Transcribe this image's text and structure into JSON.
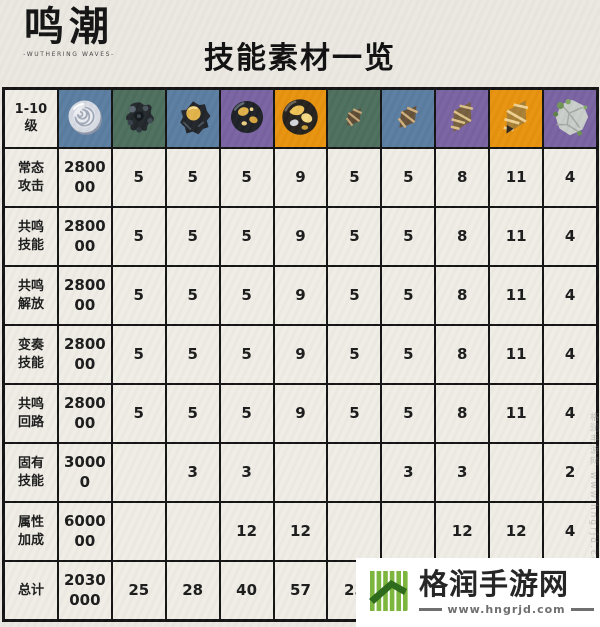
{
  "logo": {
    "title": "鸣潮",
    "subtitle": "-WUTHERING WAVES-"
  },
  "header": {
    "title": "技能素材一览"
  },
  "colors": {
    "tile_blue": "#5b7da1",
    "tile_green": "#4e6f5e",
    "tile_purple": "#7a63a2",
    "tile_orange": "#e8930f",
    "table_border": "#141414",
    "cell_bg": "#f0ede6",
    "page_bg": "#ebe8e1",
    "watermark_green": "#7cb63e",
    "watermark_dark_green": "#2f6b1d"
  },
  "chart_data": {
    "type": "table",
    "title": "技能素材一览",
    "header": {
      "level_label_top": "1-10",
      "level_label_bottom": "级",
      "columns": [
        {
          "icon": "shell-credit-icon",
          "bg": "#5b7da1"
        },
        {
          "icon": "howler-core-t1-icon",
          "bg": "#4e6f5e"
        },
        {
          "icon": "howler-core-t2-icon",
          "bg": "#5b7da1"
        },
        {
          "icon": "howler-core-t3-icon",
          "bg": "#7a63a2"
        },
        {
          "icon": "howler-core-t4-icon",
          "bg": "#e8930f"
        },
        {
          "icon": "forgery-material-t1-icon",
          "bg": "#4e6f5e"
        },
        {
          "icon": "forgery-material-t2-icon",
          "bg": "#5b7da1"
        },
        {
          "icon": "forgery-material-t3-icon",
          "bg": "#7a63a2"
        },
        {
          "icon": "forgery-material-t4-icon",
          "bg": "#e8930f"
        },
        {
          "icon": "boss-material-icon",
          "bg": "#7a63a2"
        }
      ]
    },
    "rows": [
      {
        "label": "常态攻击",
        "values": [
          "280000",
          "5",
          "5",
          "5",
          "9",
          "5",
          "5",
          "8",
          "11",
          "4"
        ]
      },
      {
        "label": "共鸣技能",
        "values": [
          "280000",
          "5",
          "5",
          "5",
          "9",
          "5",
          "5",
          "8",
          "11",
          "4"
        ]
      },
      {
        "label": "共鸣解放",
        "values": [
          "280000",
          "5",
          "5",
          "5",
          "9",
          "5",
          "5",
          "8",
          "11",
          "4"
        ]
      },
      {
        "label": "变奏技能",
        "values": [
          "280000",
          "5",
          "5",
          "5",
          "9",
          "5",
          "5",
          "8",
          "11",
          "4"
        ]
      },
      {
        "label": "共鸣回路",
        "values": [
          "280000",
          "5",
          "5",
          "5",
          "9",
          "5",
          "5",
          "8",
          "11",
          "4"
        ]
      },
      {
        "label": "固有技能",
        "values": [
          "30000",
          "",
          "3",
          "3",
          "",
          "",
          "3",
          "3",
          "",
          "2"
        ]
      },
      {
        "label": "属性加成",
        "values": [
          "600000",
          "",
          "",
          "12",
          "12",
          "",
          "",
          "12",
          "12",
          "4"
        ]
      },
      {
        "label": "总计",
        "values": [
          "2030000",
          "25",
          "28",
          "40",
          "57",
          "25",
          "",
          "",
          "",
          ""
        ]
      }
    ]
  },
  "watermark": {
    "site_name": "格润手游网",
    "site_url": "www.hngrjd.com"
  },
  "side_watermark": "格润手游网 www.hngrjd.com"
}
